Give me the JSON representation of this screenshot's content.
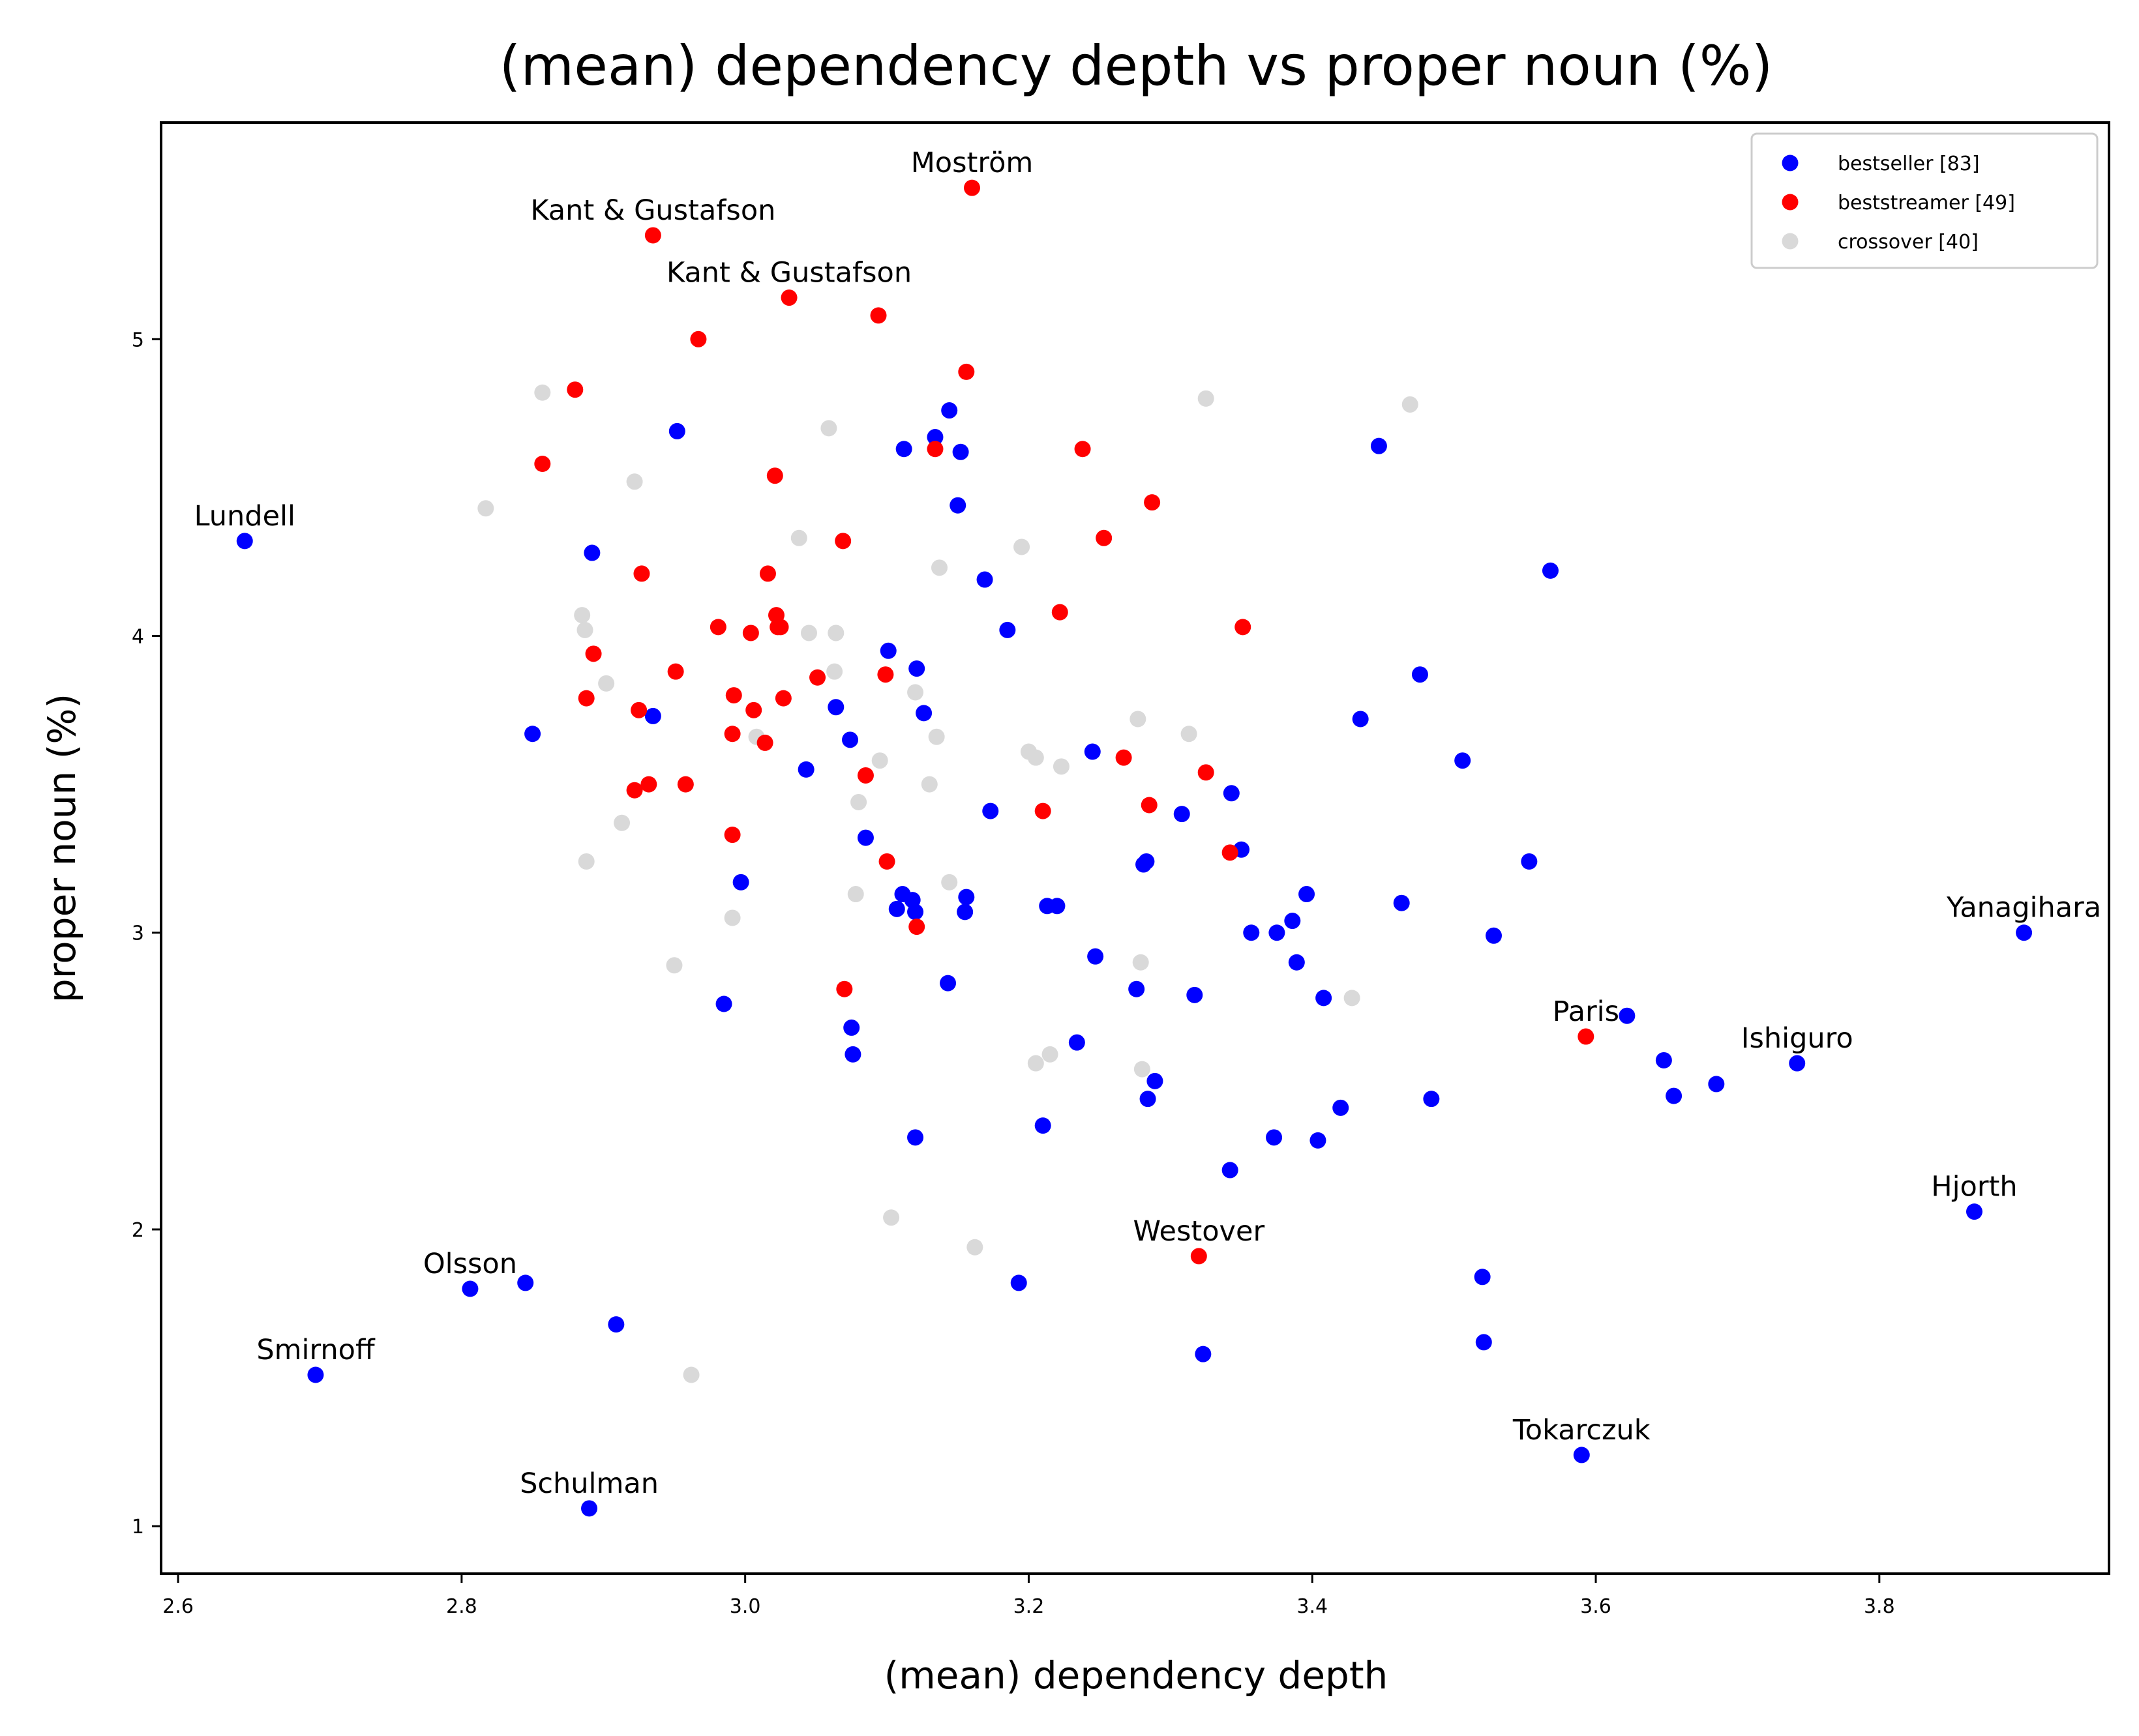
{
  "chart_data": {
    "type": "scatter",
    "title": "(mean) dependency depth vs proper noun (%)",
    "xlabel": "(mean) dependency depth",
    "ylabel": "proper noun (%)",
    "xlim": [
      2.588,
      3.962
    ],
    "ylim": [
      0.84,
      5.73
    ],
    "xticks": [
      2.6,
      2.8,
      3.0,
      3.2,
      3.4,
      3.6,
      3.8
    ],
    "xtick_labels": [
      "2.6",
      "2.8",
      "3.0",
      "3.2",
      "3.4",
      "3.6",
      "3.8"
    ],
    "yticks": [
      1,
      2,
      3,
      4,
      5
    ],
    "ytick_labels": [
      "1",
      "2",
      "3",
      "4",
      "5"
    ],
    "grid": false,
    "legend_position": "top-right",
    "series": [
      {
        "name": "bestseller [83]",
        "color": "#0000ff",
        "points": [
          [
            2.647,
            4.32
          ],
          [
            2.697,
            1.51
          ],
          [
            2.806,
            1.8
          ],
          [
            2.845,
            1.82
          ],
          [
            2.85,
            3.67
          ],
          [
            2.89,
            1.06
          ],
          [
            2.892,
            4.28
          ],
          [
            2.909,
            1.68
          ],
          [
            2.935,
            3.73
          ],
          [
            2.952,
            4.69
          ],
          [
            2.985,
            2.76
          ],
          [
            2.997,
            3.17
          ],
          [
            3.043,
            3.55
          ],
          [
            3.064,
            3.76
          ],
          [
            3.074,
            3.65
          ],
          [
            3.075,
            2.68
          ],
          [
            3.076,
            2.59
          ],
          [
            3.085,
            3.32
          ],
          [
            3.101,
            3.95
          ],
          [
            3.107,
            3.08
          ],
          [
            3.111,
            3.13
          ],
          [
            3.112,
            4.63
          ],
          [
            3.118,
            3.11
          ],
          [
            3.12,
            3.07
          ],
          [
            3.12,
            2.31
          ],
          [
            3.121,
            3.89
          ],
          [
            3.126,
            3.74
          ],
          [
            3.134,
            4.67
          ],
          [
            3.143,
            2.83
          ],
          [
            3.144,
            4.76
          ],
          [
            3.15,
            4.44
          ],
          [
            3.152,
            4.62
          ],
          [
            3.155,
            3.07
          ],
          [
            3.156,
            3.12
          ],
          [
            3.169,
            4.19
          ],
          [
            3.173,
            3.41
          ],
          [
            3.185,
            4.02
          ],
          [
            3.193,
            1.82
          ],
          [
            3.21,
            2.35
          ],
          [
            3.213,
            3.09
          ],
          [
            3.22,
            3.09
          ],
          [
            3.234,
            2.63
          ],
          [
            3.245,
            3.61
          ],
          [
            3.247,
            2.92
          ],
          [
            3.276,
            2.81
          ],
          [
            3.281,
            3.23
          ],
          [
            3.283,
            3.24
          ],
          [
            3.284,
            2.44
          ],
          [
            3.289,
            2.5
          ],
          [
            3.308,
            3.4
          ],
          [
            3.317,
            2.79
          ],
          [
            3.323,
            1.58
          ],
          [
            3.342,
            2.2
          ],
          [
            3.343,
            3.47
          ],
          [
            3.35,
            3.28
          ],
          [
            3.357,
            3.0
          ],
          [
            3.373,
            2.31
          ],
          [
            3.375,
            3.0
          ],
          [
            3.386,
            3.04
          ],
          [
            3.389,
            2.9
          ],
          [
            3.396,
            3.13
          ],
          [
            3.404,
            2.3
          ],
          [
            3.408,
            2.78
          ],
          [
            3.42,
            2.41
          ],
          [
            3.434,
            3.72
          ],
          [
            3.447,
            4.64
          ],
          [
            3.463,
            3.1
          ],
          [
            3.476,
            3.87
          ],
          [
            3.484,
            2.44
          ],
          [
            3.506,
            3.58
          ],
          [
            3.52,
            1.84
          ],
          [
            3.521,
            1.62
          ],
          [
            3.528,
            2.99
          ],
          [
            3.553,
            3.24
          ],
          [
            3.568,
            4.22
          ],
          [
            3.59,
            1.24
          ],
          [
            3.622,
            2.72
          ],
          [
            3.648,
            2.57
          ],
          [
            3.655,
            2.45
          ],
          [
            3.685,
            2.49
          ],
          [
            3.742,
            2.56
          ],
          [
            3.867,
            2.06
          ],
          [
            3.902,
            3.0
          ]
        ]
      },
      {
        "name": "beststreamer [49]",
        "color": "#ff0000",
        "points": [
          [
            2.857,
            4.58
          ],
          [
            2.88,
            4.83
          ],
          [
            2.888,
            3.79
          ],
          [
            2.893,
            3.94
          ],
          [
            2.922,
            3.48
          ],
          [
            2.925,
            3.75
          ],
          [
            2.927,
            4.21
          ],
          [
            2.932,
            3.5
          ],
          [
            2.935,
            5.35
          ],
          [
            2.951,
            3.88
          ],
          [
            2.958,
            3.5
          ],
          [
            2.967,
            5.0
          ],
          [
            2.981,
            4.03
          ],
          [
            2.991,
            3.33
          ],
          [
            2.991,
            3.67
          ],
          [
            2.992,
            3.8
          ],
          [
            3.004,
            4.01
          ],
          [
            3.006,
            3.75
          ],
          [
            3.014,
            3.64
          ],
          [
            3.016,
            4.21
          ],
          [
            3.021,
            4.54
          ],
          [
            3.022,
            4.07
          ],
          [
            3.023,
            4.03
          ],
          [
            3.025,
            4.03
          ],
          [
            3.027,
            3.79
          ],
          [
            3.031,
            5.14
          ],
          [
            3.051,
            3.86
          ],
          [
            3.069,
            4.32
          ],
          [
            3.07,
            2.81
          ],
          [
            3.085,
            3.53
          ],
          [
            3.094,
            5.08
          ],
          [
            3.099,
            3.87
          ],
          [
            3.1,
            3.24
          ],
          [
            3.121,
            3.02
          ],
          [
            3.134,
            4.63
          ],
          [
            3.156,
            4.89
          ],
          [
            3.16,
            5.51
          ],
          [
            3.21,
            3.41
          ],
          [
            3.222,
            4.08
          ],
          [
            3.238,
            4.63
          ],
          [
            3.253,
            4.33
          ],
          [
            3.267,
            3.59
          ],
          [
            3.285,
            3.43
          ],
          [
            3.287,
            4.45
          ],
          [
            3.32,
            1.91
          ],
          [
            3.325,
            3.54
          ],
          [
            3.342,
            3.27
          ],
          [
            3.351,
            4.03
          ],
          [
            3.593,
            2.65
          ]
        ]
      },
      {
        "name": "crossover [40]",
        "color": "#d9d9d9",
        "points": [
          [
            2.817,
            4.43
          ],
          [
            2.857,
            4.82
          ],
          [
            2.885,
            4.07
          ],
          [
            2.887,
            4.02
          ],
          [
            2.888,
            3.24
          ],
          [
            2.902,
            3.84
          ],
          [
            2.913,
            3.37
          ],
          [
            2.922,
            4.52
          ],
          [
            2.95,
            2.89
          ],
          [
            2.962,
            1.51
          ],
          [
            2.991,
            3.05
          ],
          [
            3.008,
            3.66
          ],
          [
            3.038,
            4.33
          ],
          [
            3.045,
            4.01
          ],
          [
            3.059,
            4.7
          ],
          [
            3.063,
            3.88
          ],
          [
            3.064,
            4.01
          ],
          [
            3.078,
            3.13
          ],
          [
            3.08,
            3.44
          ],
          [
            3.095,
            3.58
          ],
          [
            3.103,
            2.04
          ],
          [
            3.12,
            3.81
          ],
          [
            3.13,
            3.5
          ],
          [
            3.135,
            3.66
          ],
          [
            3.137,
            4.23
          ],
          [
            3.144,
            3.17
          ],
          [
            3.162,
            1.94
          ],
          [
            3.195,
            4.3
          ],
          [
            3.2,
            3.61
          ],
          [
            3.205,
            3.59
          ],
          [
            3.205,
            2.56
          ],
          [
            3.215,
            2.59
          ],
          [
            3.223,
            3.56
          ],
          [
            3.277,
            3.72
          ],
          [
            3.279,
            2.9
          ],
          [
            3.28,
            2.54
          ],
          [
            3.313,
            3.67
          ],
          [
            3.325,
            4.8
          ],
          [
            3.428,
            2.78
          ],
          [
            3.469,
            4.78
          ]
        ]
      }
    ],
    "annotations": [
      {
        "text": "Moström",
        "x": 3.16,
        "y": 5.51
      },
      {
        "text": "Kant & Gustafson",
        "x": 2.935,
        "y": 5.35
      },
      {
        "text": "Kant & Gustafson",
        "x": 3.031,
        "y": 5.14
      },
      {
        "text": "Lundell",
        "x": 2.647,
        "y": 4.32
      },
      {
        "text": "Yanagihara",
        "x": 3.902,
        "y": 3.0
      },
      {
        "text": "Paris",
        "x": 3.593,
        "y": 2.65
      },
      {
        "text": "Ishiguro",
        "x": 3.742,
        "y": 2.56
      },
      {
        "text": "Hjorth",
        "x": 3.867,
        "y": 2.06
      },
      {
        "text": "Westover",
        "x": 3.32,
        "y": 1.91
      },
      {
        "text": "Olsson",
        "x": 2.806,
        "y": 1.8
      },
      {
        "text": "Smirnoff",
        "x": 2.697,
        "y": 1.51
      },
      {
        "text": "Tokarczuk",
        "x": 3.59,
        "y": 1.24
      },
      {
        "text": "Schulman",
        "x": 2.89,
        "y": 1.06
      }
    ]
  }
}
